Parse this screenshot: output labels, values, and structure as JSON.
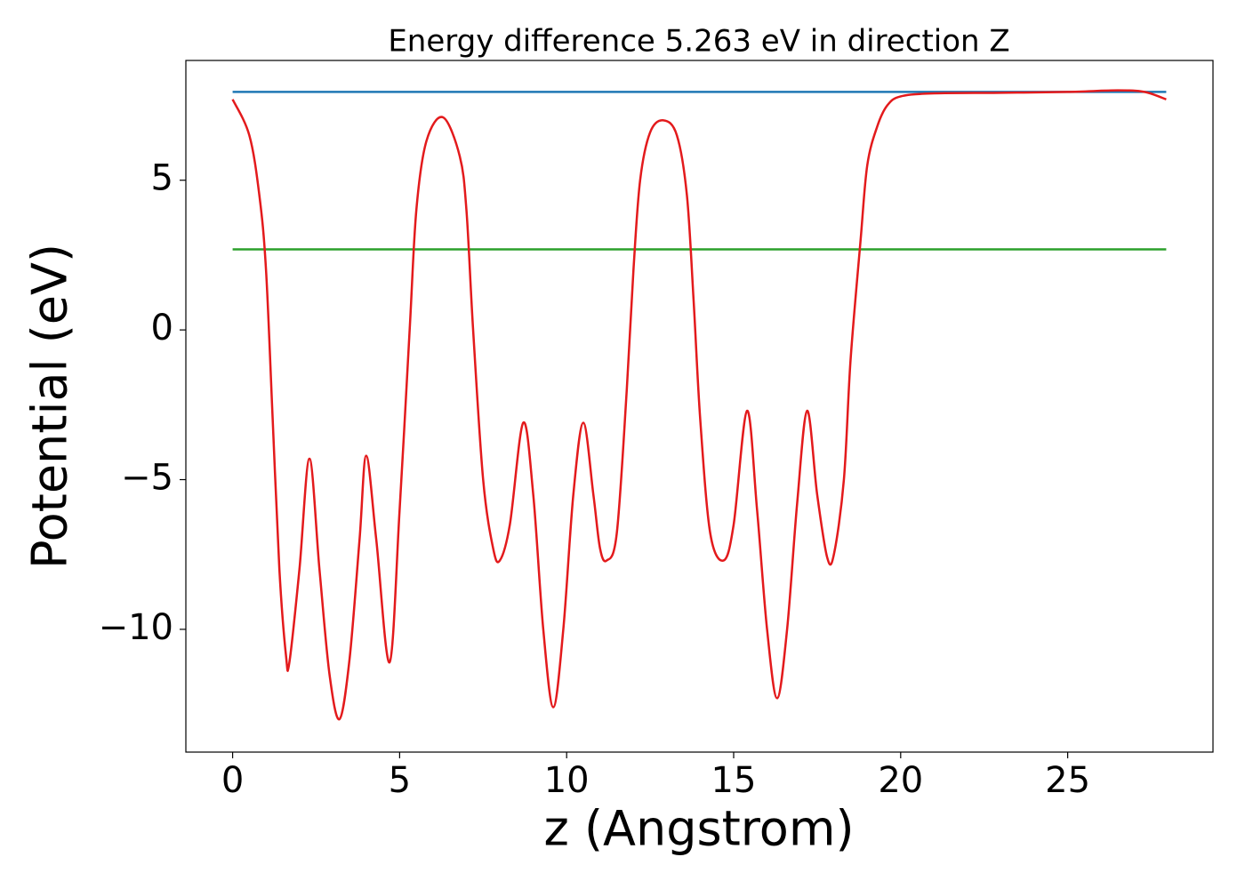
{
  "chart_data": {
    "type": "line",
    "title": "Energy difference 5.263 eV in direction Z",
    "xlabel": "z (Angstrom)",
    "ylabel": "Potential (eV)",
    "xlim": [
      -1.4,
      29.35
    ],
    "ylim": [
      -14.1,
      9.0
    ],
    "xticks": [
      0,
      5,
      10,
      15,
      20,
      25
    ],
    "yticks": [
      {
        "value": -10,
        "label": "−10"
      },
      {
        "value": -5,
        "label": "−5"
      },
      0,
      5
    ],
    "series": [
      {
        "color": "#1f77b4",
        "x": [
          0,
          27.95
        ],
        "values": [
          7.95,
          7.95
        ]
      },
      {
        "color": "#2ca02c",
        "x": [
          0,
          27.95
        ],
        "values": [
          2.69,
          2.69
        ]
      },
      {
        "color": "#e31a1c",
        "x": [
          0,
          0.5,
          0.8,
          1.0,
          1.2,
          1.4,
          1.6,
          1.7,
          2.0,
          2.3,
          2.6,
          2.9,
          3.2,
          3.5,
          3.8,
          4.0,
          4.3,
          4.7,
          5.0,
          5.3,
          5.5,
          5.8,
          6.3,
          6.8,
          7.0,
          7.2,
          7.5,
          7.8,
          8.0,
          8.3,
          8.7,
          9.0,
          9.3,
          9.6,
          9.9,
          10.2,
          10.5,
          10.8,
          11.0,
          11.2,
          11.5,
          11.8,
          12.0,
          12.2,
          12.5,
          12.9,
          13.3,
          13.6,
          13.8,
          14.0,
          14.3,
          14.7,
          15.0,
          15.4,
          15.7,
          16.0,
          16.3,
          16.6,
          16.9,
          17.2,
          17.5,
          17.8,
          18.0,
          18.3,
          18.5,
          18.8,
          19.0,
          19.3,
          19.6,
          20.0,
          21.0,
          23.0,
          25.0,
          26.5,
          27.3,
          27.95
        ],
        "values": [
          7.7,
          6.5,
          4.5,
          2.0,
          -3.0,
          -8.0,
          -10.9,
          -11.1,
          -8.0,
          -4.3,
          -8.0,
          -11.5,
          -13.0,
          -11.0,
          -7.0,
          -4.2,
          -7.0,
          -11.1,
          -6.0,
          0.0,
          4.0,
          6.3,
          7.1,
          5.8,
          4.0,
          0.0,
          -5.0,
          -7.3,
          -7.7,
          -6.5,
          -3.1,
          -5.5,
          -10.0,
          -12.6,
          -10.0,
          -5.5,
          -3.1,
          -5.5,
          -7.3,
          -7.7,
          -6.8,
          -2.0,
          2.0,
          5.0,
          6.6,
          7.0,
          6.5,
          4.5,
          1.0,
          -3.0,
          -6.8,
          -7.7,
          -6.5,
          -2.7,
          -6.0,
          -10.0,
          -12.3,
          -10.0,
          -5.8,
          -2.7,
          -5.5,
          -7.6,
          -7.5,
          -5.0,
          -1.0,
          3.0,
          5.5,
          6.8,
          7.5,
          7.8,
          7.9,
          7.92,
          7.95,
          8.0,
          7.95,
          7.7
        ]
      }
    ]
  }
}
